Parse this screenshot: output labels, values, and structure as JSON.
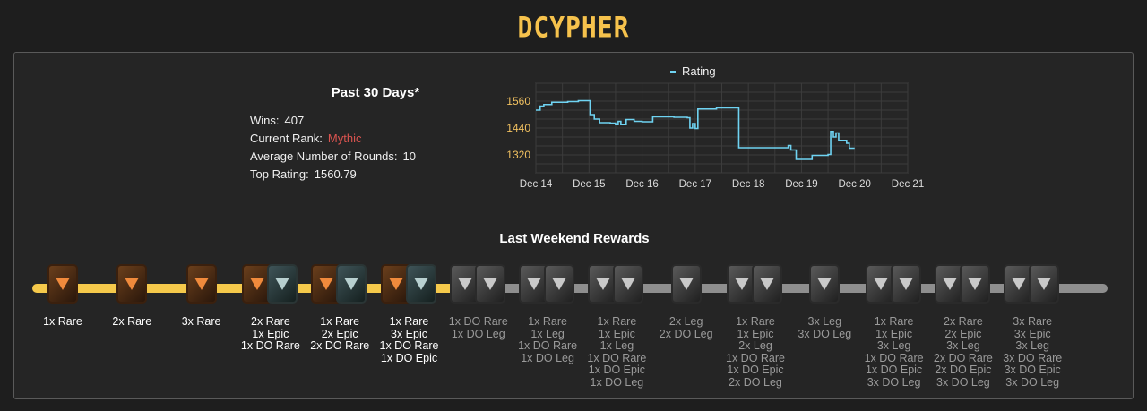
{
  "page": {
    "title": "DCYPHER"
  },
  "stats": {
    "heading": "Past 30 Days*",
    "wins_label": "Wins:",
    "wins_value": "407",
    "rank_label": "Current Rank:",
    "rank_value": "Mythic",
    "rounds_label": "Average Number of Rounds:",
    "rounds_value": "10",
    "top_label": "Top Rating:",
    "top_value": "1560.79"
  },
  "colors": {
    "accent": "#f6c24c",
    "line": "#6fd3f2",
    "mythic": "#d9534f",
    "track_active": "#f5c94b",
    "track_inactive": "#8e8e8e"
  },
  "chart_data": {
    "type": "line",
    "series": [
      {
        "name": "Rating",
        "points": [
          [
            0,
            1520
          ],
          [
            0.08,
            1538
          ],
          [
            0.15,
            1545
          ],
          [
            0.3,
            1555
          ],
          [
            0.6,
            1558
          ],
          [
            0.8,
            1562
          ],
          [
            1.0,
            1562
          ],
          [
            1.02,
            1500
          ],
          [
            1.1,
            1480
          ],
          [
            1.2,
            1464
          ],
          [
            1.4,
            1462
          ],
          [
            1.5,
            1455
          ],
          [
            1.55,
            1470
          ],
          [
            1.6,
            1455
          ],
          [
            1.7,
            1478
          ],
          [
            1.85,
            1470
          ],
          [
            2.0,
            1468
          ],
          [
            2.2,
            1490
          ],
          [
            2.4,
            1490
          ],
          [
            2.6,
            1488
          ],
          [
            2.85,
            1486
          ],
          [
            2.9,
            1440
          ],
          [
            2.95,
            1460
          ],
          [
            3.0,
            1438
          ],
          [
            3.05,
            1525
          ],
          [
            3.4,
            1530
          ],
          [
            3.8,
            1530
          ],
          [
            3.82,
            1352
          ],
          [
            4.2,
            1352
          ],
          [
            4.6,
            1352
          ],
          [
            4.75,
            1362
          ],
          [
            4.8,
            1342
          ],
          [
            4.9,
            1300
          ],
          [
            5.0,
            1300
          ],
          [
            5.2,
            1318
          ],
          [
            5.5,
            1322
          ],
          [
            5.55,
            1425
          ],
          [
            5.6,
            1400
          ],
          [
            5.65,
            1418
          ],
          [
            5.7,
            1385
          ],
          [
            5.85,
            1372
          ],
          [
            5.9,
            1350
          ],
          [
            6.0,
            1350
          ]
        ]
      }
    ],
    "x_ticks": [
      "Dec 14",
      "Dec 15",
      "Dec 16",
      "Dec 17",
      "Dec 18",
      "Dec 19",
      "Dec 20",
      "Dec 21"
    ],
    "y_ticks": [
      1320,
      1440,
      1560
    ],
    "xlim": [
      0,
      7
    ],
    "ylim": [
      1240,
      1640
    ],
    "grid": true,
    "legend": "top-center"
  },
  "rewards": {
    "title": "Last Weekend Rewards",
    "tiers": [
      {
        "active": true,
        "cards": [
          "rare"
        ],
        "lines": [
          "1x Rare"
        ]
      },
      {
        "active": true,
        "cards": [
          "rare"
        ],
        "lines": [
          "2x Rare"
        ]
      },
      {
        "active": true,
        "cards": [
          "rare"
        ],
        "lines": [
          "3x Rare"
        ]
      },
      {
        "active": true,
        "cards": [
          "rare",
          "epic"
        ],
        "lines": [
          "2x Rare",
          "1x Epic",
          "1x DO Rare"
        ]
      },
      {
        "active": true,
        "cards": [
          "rare",
          "epic"
        ],
        "lines": [
          "1x Rare",
          "2x Epic",
          "2x DO Rare"
        ]
      },
      {
        "active": true,
        "cards": [
          "rare",
          "epic"
        ],
        "lines": [
          "1x Rare",
          "3x Epic",
          "1x DO Rare",
          "1x DO Epic"
        ]
      },
      {
        "active": false,
        "cards": [
          "leg",
          "leg"
        ],
        "lines": [
          "1x DO Rare",
          "1x DO Leg"
        ]
      },
      {
        "active": false,
        "cards": [
          "leg",
          "leg"
        ],
        "lines": [
          "1x Rare",
          "1x Leg",
          "1x DO Rare",
          "1x DO Leg"
        ]
      },
      {
        "active": false,
        "cards": [
          "leg",
          "leg"
        ],
        "lines": [
          "1x Rare",
          "1x Epic",
          "1x Leg",
          "1x DO Rare",
          "1x DO Epic",
          "1x DO Leg"
        ]
      },
      {
        "active": false,
        "cards": [
          "leg"
        ],
        "lines": [
          "2x Leg",
          "2x DO Leg"
        ]
      },
      {
        "active": false,
        "cards": [
          "leg",
          "leg"
        ],
        "lines": [
          "1x Rare",
          "1x Epic",
          "2x Leg",
          "1x DO Rare",
          "1x DO Epic",
          "2x DO Leg"
        ]
      },
      {
        "active": false,
        "cards": [
          "leg"
        ],
        "lines": [
          "3x Leg",
          "3x DO Leg"
        ]
      },
      {
        "active": false,
        "cards": [
          "leg",
          "leg"
        ],
        "lines": [
          "1x Rare",
          "1x Epic",
          "3x Leg",
          "1x DO Rare",
          "1x DO Epic",
          "3x DO Leg"
        ]
      },
      {
        "active": false,
        "cards": [
          "leg",
          "leg"
        ],
        "lines": [
          "2x Rare",
          "2x Epic",
          "3x Leg",
          "2x DO Rare",
          "2x DO Epic",
          "3x DO Leg"
        ]
      },
      {
        "active": false,
        "cards": [
          "leg",
          "leg"
        ],
        "lines": [
          "3x Rare",
          "3x Epic",
          "3x Leg",
          "3x DO Rare",
          "3x DO Epic",
          "3x DO Leg"
        ]
      }
    ]
  }
}
